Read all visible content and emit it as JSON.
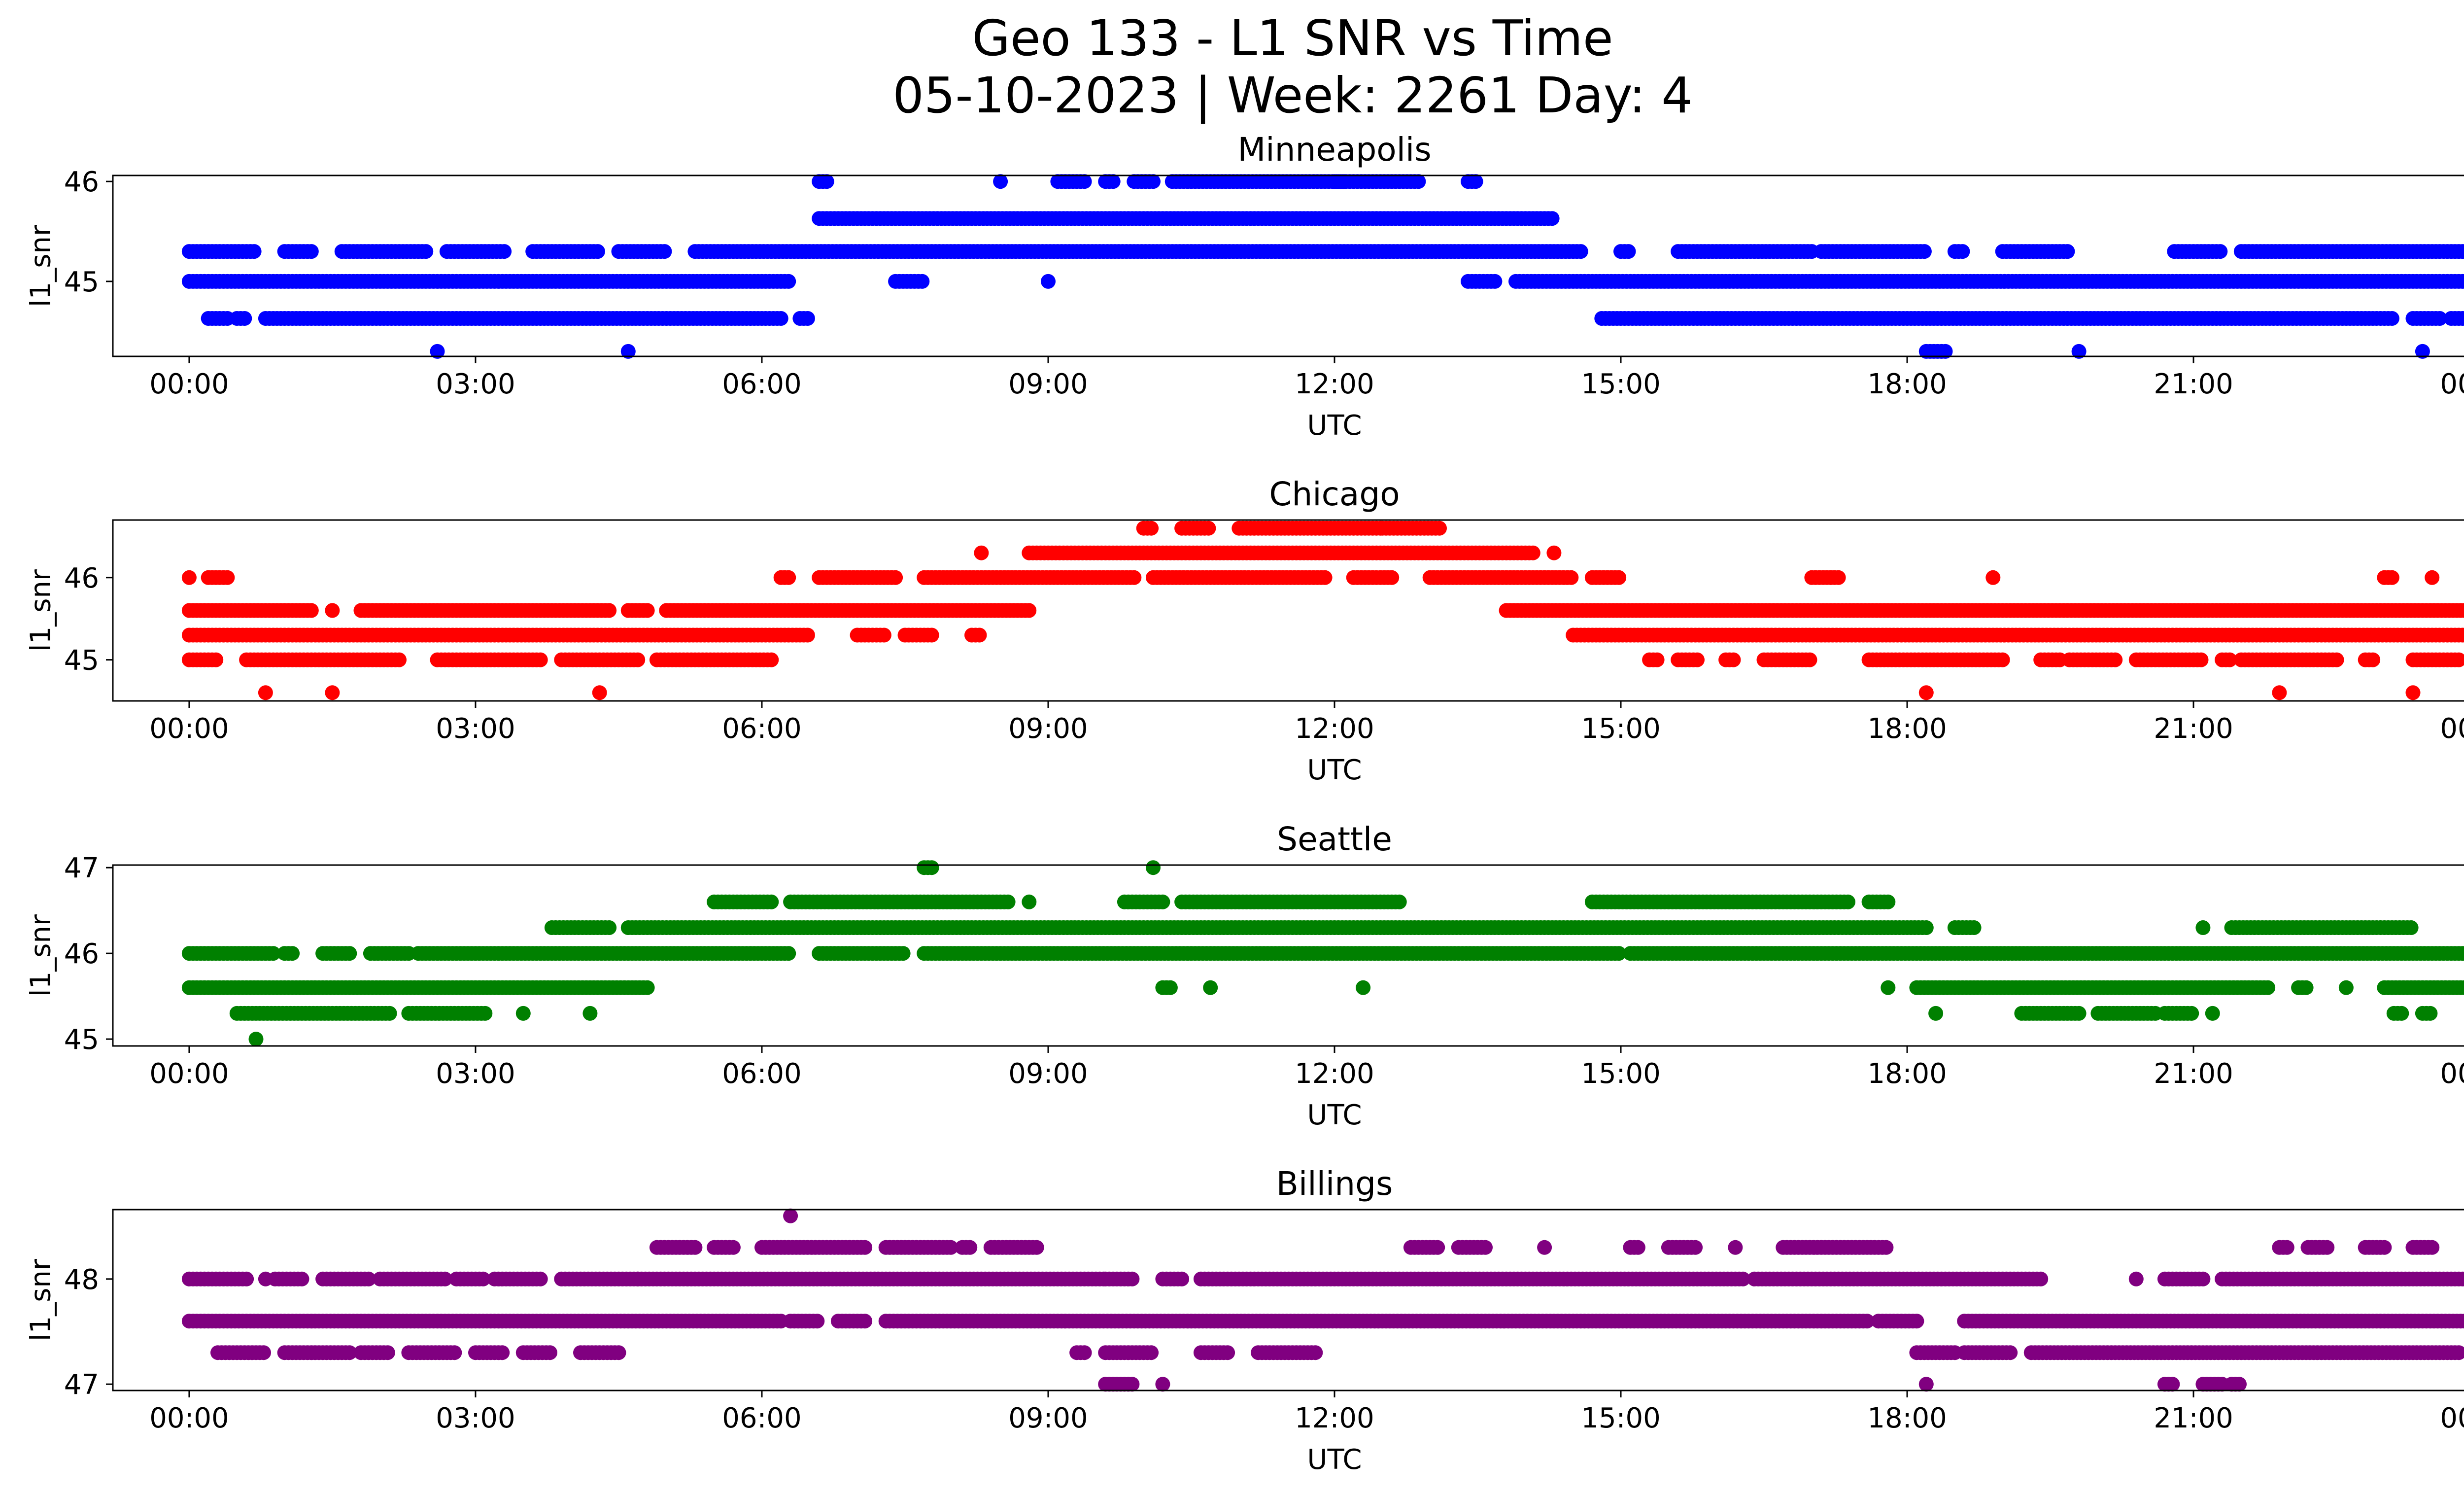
{
  "figure": {
    "title_line1": "Geo 133 - L1 SNR vs Time",
    "title_line2": "05-10-2023 | Week: 2261 Day: 4"
  },
  "chart_data": [
    {
      "type": "scatter",
      "title": "Minneapolis",
      "xlabel": "UTC",
      "ylabel": "l1_snr",
      "color": "#0000ff",
      "xlim": [
        "00:00",
        "24:00"
      ],
      "yticks": [
        45,
        46
      ],
      "ylim": [
        44.25,
        46.06
      ],
      "xticks": [
        "00:00",
        "03:00",
        "06:00",
        "09:00",
        "12:00",
        "15:00",
        "18:00",
        "21:00",
        "00:00"
      ],
      "level_runs": [
        {
          "y": 46.0,
          "ranges": [
            [
              6.6,
              6.7
            ],
            [
              8.5,
              8.5
            ],
            [
              9.1,
              9.4
            ],
            [
              9.6,
              9.7
            ],
            [
              9.9,
              10.1
            ],
            [
              10.3,
              12.1
            ],
            [
              12.0,
              12.9
            ],
            [
              13.4,
              13.5
            ]
          ]
        },
        {
          "y": 45.63,
          "ranges": [
            [
              6.6,
              14.3
            ]
          ]
        },
        {
          "y": 45.3,
          "ranges": [
            [
              0.0,
              0.7
            ],
            [
              1.0,
              1.3
            ],
            [
              1.6,
              2.5
            ],
            [
              2.7,
              3.3
            ],
            [
              3.6,
              4.3
            ],
            [
              4.5,
              5.0
            ],
            [
              5.3,
              14.6
            ],
            [
              15.0,
              15.1
            ],
            [
              15.6,
              17.0
            ],
            [
              17.1,
              18.2
            ],
            [
              18.5,
              18.6
            ],
            [
              19.0,
              19.7
            ],
            [
              20.8,
              21.3
            ],
            [
              21.5,
              24.0
            ]
          ]
        },
        {
          "y": 45.0,
          "ranges": [
            [
              0.0,
              6.3
            ],
            [
              7.4,
              7.7
            ],
            [
              9.0,
              9.0
            ],
            [
              13.4,
              13.7
            ],
            [
              13.9,
              24.0
            ]
          ]
        },
        {
          "y": 44.63,
          "ranges": [
            [
              0.2,
              0.4
            ],
            [
              0.5,
              0.6
            ],
            [
              0.8,
              6.2
            ],
            [
              6.4,
              6.5
            ],
            [
              14.8,
              23.1
            ],
            [
              23.3,
              23.6
            ],
            [
              23.7,
              24.0
            ]
          ]
        },
        {
          "y": 44.3,
          "ranges": [
            [
              2.6,
              2.6
            ],
            [
              4.6,
              4.6
            ],
            [
              18.2,
              18.4
            ],
            [
              19.8,
              19.8
            ],
            [
              23.4,
              23.4
            ]
          ]
        }
      ]
    },
    {
      "type": "scatter",
      "title": "Chicago",
      "xlabel": "UTC",
      "ylabel": "l1_snr",
      "color": "#ff0000",
      "xlim": [
        "00:00",
        "24:00"
      ],
      "yticks": [
        45,
        46
      ],
      "ylim": [
        44.5,
        46.7
      ],
      "xticks": [
        "00:00",
        "03:00",
        "06:00",
        "09:00",
        "12:00",
        "15:00",
        "18:00",
        "21:00",
        "00:00"
      ],
      "level_runs": [
        {
          "y": 46.6,
          "ranges": [
            [
              10.0,
              10.1
            ],
            [
              10.4,
              10.7
            ],
            [
              11.0,
              12.5
            ],
            [
              12.5,
              13.1
            ]
          ]
        },
        {
          "y": 46.3,
          "ranges": [
            [
              8.3,
              8.3
            ],
            [
              8.8,
              14.1
            ],
            [
              14.3,
              14.3
            ]
          ]
        },
        {
          "y": 46.0,
          "ranges": [
            [
              0.0,
              0.0
            ],
            [
              0.2,
              0.4
            ],
            [
              6.2,
              6.3
            ],
            [
              6.6,
              7.4
            ],
            [
              7.7,
              9.9
            ],
            [
              10.1,
              11.9
            ],
            [
              12.2,
              12.6
            ],
            [
              13.0,
              14.5
            ],
            [
              14.7,
              15.0
            ],
            [
              17.0,
              17.2
            ],
            [
              17.2,
              17.3
            ],
            [
              18.9,
              18.9
            ],
            [
              23.0,
              23.1
            ],
            [
              23.5,
              23.5
            ]
          ]
        },
        {
          "y": 45.6,
          "ranges": [
            [
              0.0,
              1.3
            ],
            [
              1.5,
              1.5
            ],
            [
              1.8,
              4.4
            ],
            [
              4.6,
              4.8
            ],
            [
              5.0,
              8.8
            ],
            [
              13.8,
              24.0
            ]
          ]
        },
        {
          "y": 45.3,
          "ranges": [
            [
              0.0,
              6.5
            ],
            [
              7.0,
              7.3
            ],
            [
              7.5,
              7.8
            ],
            [
              8.2,
              8.3
            ],
            [
              14.5,
              24.0
            ]
          ]
        },
        {
          "y": 45.0,
          "ranges": [
            [
              0.0,
              0.3
            ],
            [
              0.6,
              2.2
            ],
            [
              2.6,
              3.7
            ],
            [
              3.9,
              4.7
            ],
            [
              4.9,
              6.1
            ],
            [
              15.3,
              15.4
            ],
            [
              15.6,
              15.8
            ],
            [
              16.1,
              16.2
            ],
            [
              16.5,
              17.0
            ],
            [
              17.6,
              19.0
            ],
            [
              19.4,
              19.6
            ],
            [
              19.7,
              20.2
            ],
            [
              20.4,
              21.1
            ],
            [
              21.3,
              21.4
            ],
            [
              21.5,
              22.5
            ],
            [
              22.8,
              22.9
            ],
            [
              23.3,
              23.8
            ],
            [
              24.0,
              24.0
            ]
          ]
        },
        {
          "y": 44.6,
          "ranges": [
            [
              0.8,
              0.8
            ],
            [
              1.5,
              1.5
            ],
            [
              4.3,
              4.3
            ],
            [
              18.2,
              18.2
            ],
            [
              21.9,
              21.9
            ],
            [
              23.3,
              23.3
            ]
          ]
        }
      ]
    },
    {
      "type": "scatter",
      "title": "Seattle",
      "xlabel": "UTC",
      "ylabel": "l1_snr",
      "color": "#008000",
      "xlim": [
        "00:00",
        "24:00"
      ],
      "yticks": [
        45,
        46,
        47
      ],
      "ylim": [
        44.92,
        47.03
      ],
      "xticks": [
        "00:00",
        "03:00",
        "06:00",
        "09:00",
        "12:00",
        "15:00",
        "18:00",
        "21:00",
        "00:00"
      ],
      "level_runs": [
        {
          "y": 47.0,
          "ranges": [
            [
              7.7,
              7.8
            ],
            [
              10.1,
              10.1
            ]
          ]
        },
        {
          "y": 46.6,
          "ranges": [
            [
              5.5,
              6.1
            ],
            [
              6.3,
              8.6
            ],
            [
              8.8,
              8.8
            ],
            [
              9.8,
              10.2
            ],
            [
              10.4,
              12.7
            ],
            [
              14.7,
              17.4
            ],
            [
              17.6,
              17.8
            ]
          ]
        },
        {
          "y": 46.3,
          "ranges": [
            [
              3.8,
              4.4
            ],
            [
              4.6,
              18.2
            ],
            [
              18.5,
              18.7
            ],
            [
              21.1,
              21.1
            ],
            [
              21.4,
              23.3
            ]
          ]
        },
        {
          "y": 46.0,
          "ranges": [
            [
              0.0,
              0.9
            ],
            [
              1.0,
              1.1
            ],
            [
              1.4,
              1.7
            ],
            [
              1.9,
              2.3
            ],
            [
              2.4,
              6.3
            ],
            [
              6.6,
              7.5
            ],
            [
              7.7,
              15.0
            ],
            [
              15.1,
              24.0
            ]
          ]
        },
        {
          "y": 45.6,
          "ranges": [
            [
              0.0,
              4.8
            ],
            [
              10.2,
              10.3
            ],
            [
              10.7,
              10.7
            ],
            [
              12.3,
              12.3
            ],
            [
              17.8,
              17.8
            ],
            [
              18.1,
              21.8
            ],
            [
              22.1,
              22.2
            ],
            [
              22.6,
              22.6
            ],
            [
              23.0,
              24.0
            ]
          ]
        },
        {
          "y": 45.3,
          "ranges": [
            [
              0.5,
              2.1
            ],
            [
              2.3,
              3.1
            ],
            [
              3.5,
              3.5
            ],
            [
              4.2,
              4.2
            ],
            [
              18.3,
              18.3
            ],
            [
              19.2,
              19.8
            ],
            [
              20.0,
              20.6
            ],
            [
              20.7,
              21.0
            ],
            [
              21.2,
              21.2
            ],
            [
              23.1,
              23.2
            ],
            [
              23.4,
              23.5
            ]
          ]
        },
        {
          "y": 45.0,
          "ranges": [
            [
              0.7,
              0.7
            ]
          ]
        }
      ]
    },
    {
      "type": "scatter",
      "title": "Billings",
      "xlabel": "UTC",
      "ylabel": "l1_snr",
      "color": "#800080",
      "xlim": [
        "00:00",
        "24:00"
      ],
      "yticks": [
        47,
        48
      ],
      "ylim": [
        46.94,
        48.66
      ],
      "xticks": [
        "00:00",
        "03:00",
        "06:00",
        "09:00",
        "12:00",
        "15:00",
        "18:00",
        "21:00",
        "00:00"
      ],
      "level_runs": [
        {
          "y": 48.6,
          "ranges": [
            [
              6.3,
              6.3
            ]
          ]
        },
        {
          "y": 48.3,
          "ranges": [
            [
              4.9,
              5.3
            ],
            [
              5.5,
              5.7
            ],
            [
              6.0,
              7.1
            ],
            [
              7.3,
              8.0
            ],
            [
              8.1,
              8.2
            ],
            [
              8.4,
              8.9
            ],
            [
              12.8,
              13.1
            ],
            [
              13.3,
              13.6
            ],
            [
              14.2,
              14.2
            ],
            [
              15.1,
              15.2
            ],
            [
              15.5,
              15.8
            ],
            [
              16.2,
              16.2
            ],
            [
              16.7,
              17.8
            ],
            [
              21.9,
              22.0
            ],
            [
              22.2,
              22.4
            ],
            [
              22.8,
              23.0
            ],
            [
              23.3,
              23.5
            ]
          ]
        },
        {
          "y": 48.0,
          "ranges": [
            [
              0.0,
              0.6
            ],
            [
              0.8,
              0.8
            ],
            [
              0.9,
              1.2
            ],
            [
              1.4,
              1.9
            ],
            [
              2.0,
              2.7
            ],
            [
              2.8,
              3.1
            ],
            [
              3.2,
              3.7
            ],
            [
              3.9,
              4.7
            ],
            [
              4.7,
              9.6
            ],
            [
              9.6,
              9.9
            ],
            [
              10.2,
              10.4
            ],
            [
              10.6,
              16.3
            ],
            [
              16.4,
              19.4
            ],
            [
              20.4,
              20.4
            ],
            [
              20.7,
              21.1
            ],
            [
              21.3,
              24.0
            ]
          ]
        },
        {
          "y": 47.6,
          "ranges": [
            [
              0.0,
              6.2
            ],
            [
              6.3,
              6.6
            ],
            [
              6.8,
              7.1
            ],
            [
              7.3,
              17.6
            ],
            [
              17.7,
              18.1
            ],
            [
              18.6,
              24.0
            ]
          ]
        },
        {
          "y": 47.3,
          "ranges": [
            [
              0.3,
              0.8
            ],
            [
              1.0,
              1.7
            ],
            [
              1.8,
              2.1
            ],
            [
              2.3,
              2.8
            ],
            [
              3.0,
              3.3
            ],
            [
              3.5,
              3.8
            ],
            [
              4.1,
              4.5
            ],
            [
              9.3,
              9.4
            ],
            [
              9.6,
              10.1
            ],
            [
              10.6,
              10.9
            ],
            [
              11.2,
              11.8
            ],
            [
              18.1,
              18.5
            ],
            [
              18.6,
              19.1
            ],
            [
              19.3,
              23.8
            ],
            [
              24.0,
              24.0
            ]
          ]
        },
        {
          "y": 47.0,
          "ranges": [
            [
              9.6,
              9.9
            ],
            [
              10.2,
              10.2
            ],
            [
              18.2,
              18.2
            ],
            [
              20.7,
              20.8
            ],
            [
              21.1,
              21.3
            ],
            [
              21.4,
              21.5
            ]
          ]
        }
      ]
    }
  ]
}
